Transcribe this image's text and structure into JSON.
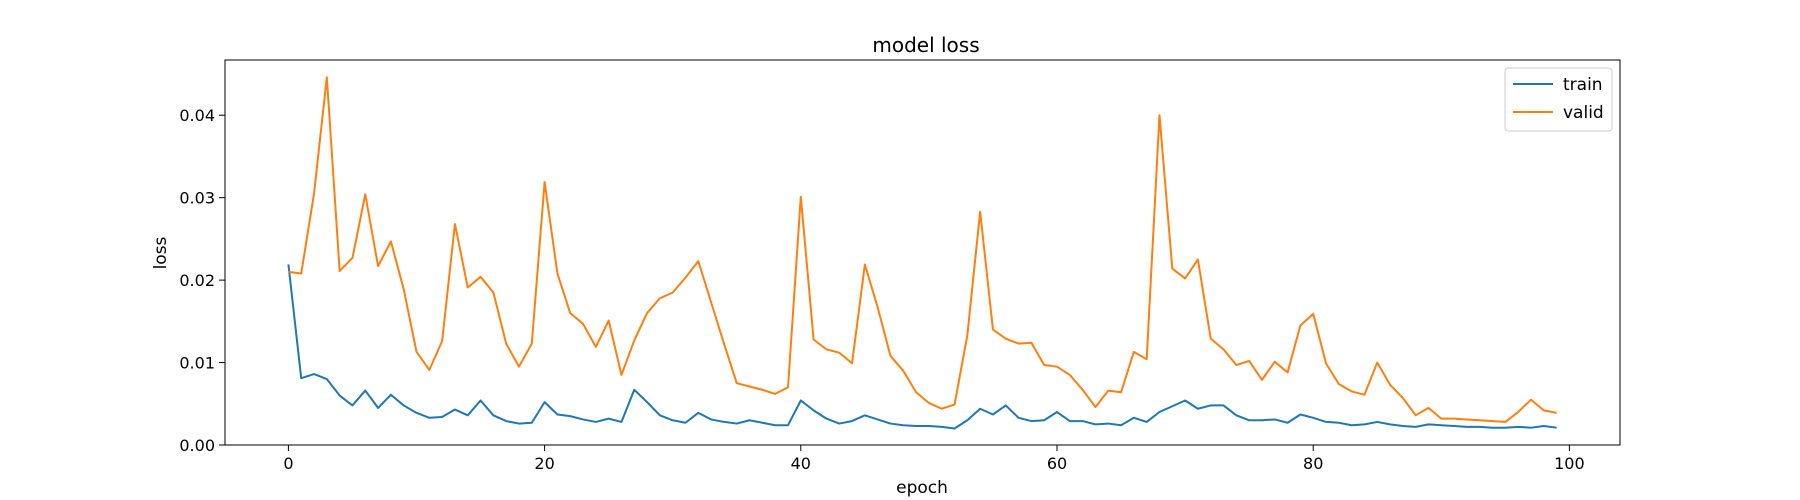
{
  "chart_data": {
    "type": "line",
    "title": "model loss",
    "xlabel": "epoch",
    "ylabel": "loss",
    "xlim": [
      -4.95,
      103.95
    ],
    "ylim": [
      0,
      0.0467
    ],
    "xticks": [
      0,
      20,
      40,
      60,
      80,
      100
    ],
    "xtick_labels": [
      "0",
      "20",
      "40",
      "60",
      "80",
      "100"
    ],
    "yticks": [
      0,
      0.01,
      0.02,
      0.03,
      0.04
    ],
    "ytick_labels": [
      "0.00",
      "0.01",
      "0.02",
      "0.03",
      "0.04"
    ],
    "grid": false,
    "legend_position": "top-right",
    "series": [
      {
        "name": "train",
        "color": "#1f77b4",
        "values": [
          0.0219,
          0.0081,
          0.0086,
          0.008,
          0.006,
          0.0048,
          0.0066,
          0.0045,
          0.0061,
          0.0048,
          0.0039,
          0.0033,
          0.0034,
          0.0043,
          0.0036,
          0.0054,
          0.0036,
          0.0029,
          0.0026,
          0.0027,
          0.0052,
          0.0037,
          0.0035,
          0.0031,
          0.0028,
          0.0032,
          0.0028,
          0.0067,
          0.0052,
          0.0036,
          0.003,
          0.0027,
          0.0039,
          0.0031,
          0.0028,
          0.0026,
          0.003,
          0.0027,
          0.0024,
          0.0024,
          0.0054,
          0.0042,
          0.0032,
          0.0026,
          0.0029,
          0.0036,
          0.0031,
          0.0026,
          0.0024,
          0.0023,
          0.0023,
          0.0022,
          0.002,
          0.003,
          0.0044,
          0.0037,
          0.0048,
          0.0033,
          0.0029,
          0.003,
          0.004,
          0.0029,
          0.0029,
          0.0025,
          0.0026,
          0.0024,
          0.0033,
          0.0028,
          0.004,
          0.0047,
          0.0054,
          0.0044,
          0.0048,
          0.0048,
          0.0036,
          0.003,
          0.003,
          0.0031,
          0.0027,
          0.0037,
          0.0033,
          0.0028,
          0.0027,
          0.0024,
          0.0025,
          0.0028,
          0.0025,
          0.0023,
          0.0022,
          0.0025,
          0.0024,
          0.0023,
          0.0022,
          0.0022,
          0.0021,
          0.0021,
          0.0022,
          0.0021,
          0.0023,
          0.0021
        ]
      },
      {
        "name": "valid",
        "color": "#ff7f0e",
        "values": [
          0.021,
          0.0208,
          0.0305,
          0.0446,
          0.0211,
          0.0227,
          0.0304,
          0.0217,
          0.0247,
          0.0189,
          0.0113,
          0.0091,
          0.0126,
          0.0268,
          0.0191,
          0.0204,
          0.0185,
          0.0123,
          0.0095,
          0.0123,
          0.0319,
          0.0208,
          0.016,
          0.0147,
          0.0119,
          0.0151,
          0.0085,
          0.0127,
          0.016,
          0.0178,
          0.0185,
          0.0203,
          0.0223,
          0.0173,
          0.0123,
          0.0075,
          0.0071,
          0.0067,
          0.0062,
          0.007,
          0.0301,
          0.0128,
          0.0116,
          0.0112,
          0.0099,
          0.0219,
          0.0167,
          0.0108,
          0.009,
          0.0064,
          0.0051,
          0.0044,
          0.0049,
          0.0133,
          0.0283,
          0.014,
          0.0129,
          0.0123,
          0.0124,
          0.0097,
          0.0095,
          0.0085,
          0.0067,
          0.0046,
          0.0066,
          0.0064,
          0.0113,
          0.0104,
          0.04,
          0.0214,
          0.0202,
          0.0225,
          0.0129,
          0.0116,
          0.0097,
          0.0102,
          0.0079,
          0.0101,
          0.0088,
          0.0145,
          0.0159,
          0.0099,
          0.0074,
          0.0065,
          0.0061,
          0.01,
          0.0073,
          0.0057,
          0.0036,
          0.0045,
          0.0032,
          0.0032,
          0.0031,
          0.003,
          0.0029,
          0.0028,
          0.004,
          0.0055,
          0.0042,
          0.0039
        ]
      }
    ]
  }
}
